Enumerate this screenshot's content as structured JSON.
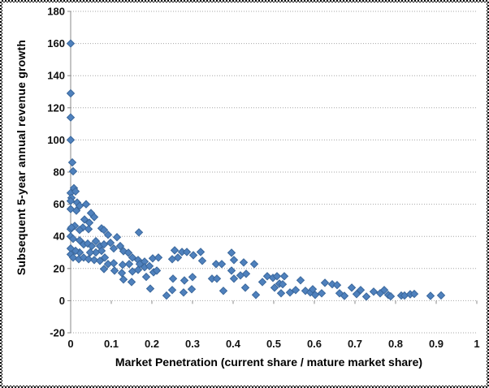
{
  "chart_data": {
    "type": "scatter",
    "title": "",
    "xlabel": "Market Penetration (current share / mature market share)",
    "ylabel": "Subsequent 5-year annual revenue growth",
    "xlim": [
      0,
      1
    ],
    "ylim": [
      -20,
      180
    ],
    "x_tick_values": [
      0,
      0.1,
      0.2,
      0.3,
      0.4,
      0.5,
      0.6,
      0.7,
      0.8,
      0.9,
      1
    ],
    "x_tick_labels": [
      "0",
      "0.1",
      "0.2",
      "0.3",
      "0.4",
      "0.5",
      "0.6",
      "0.7",
      "0.8",
      "0.9",
      "1"
    ],
    "y_tick_values": [
      -20,
      0,
      20,
      40,
      60,
      80,
      100,
      120,
      140,
      160,
      180
    ],
    "y_tick_labels": [
      "-20",
      "0",
      "20",
      "40",
      "60",
      "80",
      "100",
      "120",
      "140",
      "160",
      "180"
    ],
    "grid": "horizontal-dotted",
    "legend": "none",
    "marker": {
      "shape": "diamond",
      "fill": "#4f81bd",
      "stroke": "#3a679b",
      "size": 9
    },
    "colors": {
      "gridline": "#a6a6a6",
      "axis": "#898989",
      "background": "#ffffff",
      "frame": "#000000"
    },
    "points": [
      [
        0,
        160
      ],
      [
        0,
        129
      ],
      [
        0,
        114
      ],
      [
        0,
        100
      ],
      [
        0.004,
        86
      ],
      [
        0.006,
        80.5
      ],
      [
        0.008,
        70
      ],
      [
        0,
        67
      ],
      [
        0.012,
        68
      ],
      [
        0.002,
        64
      ],
      [
        0,
        62
      ],
      [
        0.016,
        61
      ],
      [
        0.022,
        59
      ],
      [
        0.038,
        60
      ],
      [
        0.014,
        56
      ],
      [
        0,
        57
      ],
      [
        0.05,
        54.5
      ],
      [
        0.058,
        52
      ],
      [
        0.034,
        50.5
      ],
      [
        0.046,
        48.5
      ],
      [
        0.01,
        46.5
      ],
      [
        0.03,
        45.5
      ],
      [
        0.076,
        45
      ],
      [
        0,
        44.5
      ],
      [
        0.002,
        45.5
      ],
      [
        0.022,
        44
      ],
      [
        0.044,
        44.5
      ],
      [
        0.082,
        44
      ],
      [
        0.092,
        41
      ],
      [
        0.114,
        39.5
      ],
      [
        0.168,
        42.5
      ],
      [
        0,
        40
      ],
      [
        0.006,
        38.5
      ],
      [
        0.022,
        37.5
      ],
      [
        0.062,
        37
      ],
      [
        0.032,
        35
      ],
      [
        0.042,
        35.5
      ],
      [
        0.052,
        34
      ],
      [
        0.072,
        34
      ],
      [
        0.082,
        35
      ],
      [
        0.098,
        36
      ],
      [
        0.106,
        32.5
      ],
      [
        0.122,
        34
      ],
      [
        0.13,
        30.8
      ],
      [
        0.142,
        29.8
      ],
      [
        0.076,
        31
      ],
      [
        0.062,
        30
      ],
      [
        0.048,
        30
      ],
      [
        0.022,
        30
      ],
      [
        0.012,
        31
      ],
      [
        0,
        32.5
      ],
      [
        0,
        28.8
      ],
      [
        0.006,
        26.8
      ],
      [
        0.02,
        25.8
      ],
      [
        0.032,
        26.8
      ],
      [
        0.044,
        25.8
      ],
      [
        0.058,
        25.3
      ],
      [
        0.072,
        24.8
      ],
      [
        0.084,
        26.8
      ],
      [
        0.152,
        26.8
      ],
      [
        0.166,
        25.3
      ],
      [
        0.182,
        24.3
      ],
      [
        0.202,
        26.3
      ],
      [
        0.216,
        26.8
      ],
      [
        0.092,
        22.8
      ],
      [
        0.106,
        23.3
      ],
      [
        0.128,
        22.3
      ],
      [
        0.144,
        22.8
      ],
      [
        0.17,
        22.8
      ],
      [
        0.182,
        20.8
      ],
      [
        0.194,
        21.5
      ],
      [
        0.082,
        19.7
      ],
      [
        0.108,
        18.7
      ],
      [
        0.126,
        17.2
      ],
      [
        0.152,
        18.2
      ],
      [
        0.166,
        19.2
      ],
      [
        0.204,
        17.7
      ],
      [
        0.212,
        18.7
      ],
      [
        0.13,
        13.2
      ],
      [
        0.15,
        11.6
      ],
      [
        0.186,
        14.8
      ],
      [
        0.196,
        7.5
      ],
      [
        0.236,
        3.2
      ],
      [
        0.256,
        31.3
      ],
      [
        0.274,
        30.3
      ],
      [
        0.286,
        30.3
      ],
      [
        0.264,
        26.8
      ],
      [
        0.25,
        25.8
      ],
      [
        0.302,
        28.3
      ],
      [
        0.32,
        30.3
      ],
      [
        0.324,
        24.8
      ],
      [
        0.358,
        22.8
      ],
      [
        0.372,
        22.8
      ],
      [
        0.396,
        29.8
      ],
      [
        0.402,
        25.3
      ],
      [
        0.426,
        23.8
      ],
      [
        0.452,
        22.8
      ],
      [
        0.396,
        18.7
      ],
      [
        0.418,
        15.7
      ],
      [
        0.432,
        16.7
      ],
      [
        0.252,
        13.7
      ],
      [
        0.28,
        12.6
      ],
      [
        0.3,
        14.7
      ],
      [
        0.25,
        6.6
      ],
      [
        0.278,
        5.1
      ],
      [
        0.298,
        7.1
      ],
      [
        0.348,
        13.7
      ],
      [
        0.36,
        13.7
      ],
      [
        0.376,
        6.1
      ],
      [
        0.402,
        13.7
      ],
      [
        0.43,
        8.1
      ],
      [
        0.456,
        3.6
      ],
      [
        0.472,
        11.6
      ],
      [
        0.484,
        15.2
      ],
      [
        0.498,
        14.2
      ],
      [
        0.508,
        15.2
      ],
      [
        0.514,
        10.6
      ],
      [
        0.502,
        8.1
      ],
      [
        0.518,
        4.6
      ],
      [
        0.526,
        15.2
      ],
      [
        0.522,
        10.2
      ],
      [
        0.54,
        5.1
      ],
      [
        0.554,
        6.6
      ],
      [
        0.566,
        12.7
      ],
      [
        0.578,
        6.1
      ],
      [
        0.59,
        5.1
      ],
      [
        0.596,
        7.1
      ],
      [
        0.602,
        3.6
      ],
      [
        0.618,
        4.6
      ],
      [
        0.626,
        11.1
      ],
      [
        0.644,
        10.2
      ],
      [
        0.656,
        9.7
      ],
      [
        0.662,
        4.6
      ],
      [
        0.674,
        3
      ],
      [
        0.692,
        8.1
      ],
      [
        0.704,
        4.1
      ],
      [
        0.714,
        6.6
      ],
      [
        0.728,
        2.5
      ],
      [
        0.746,
        5.6
      ],
      [
        0.762,
        4.6
      ],
      [
        0.772,
        6.6
      ],
      [
        0.782,
        3.6
      ],
      [
        0.788,
        2.7
      ],
      [
        0.814,
        3.2
      ],
      [
        0.822,
        3.2
      ],
      [
        0.836,
        4
      ],
      [
        0.846,
        4.2
      ],
      [
        0.886,
        3
      ],
      [
        0.912,
        3.3
      ]
    ]
  }
}
